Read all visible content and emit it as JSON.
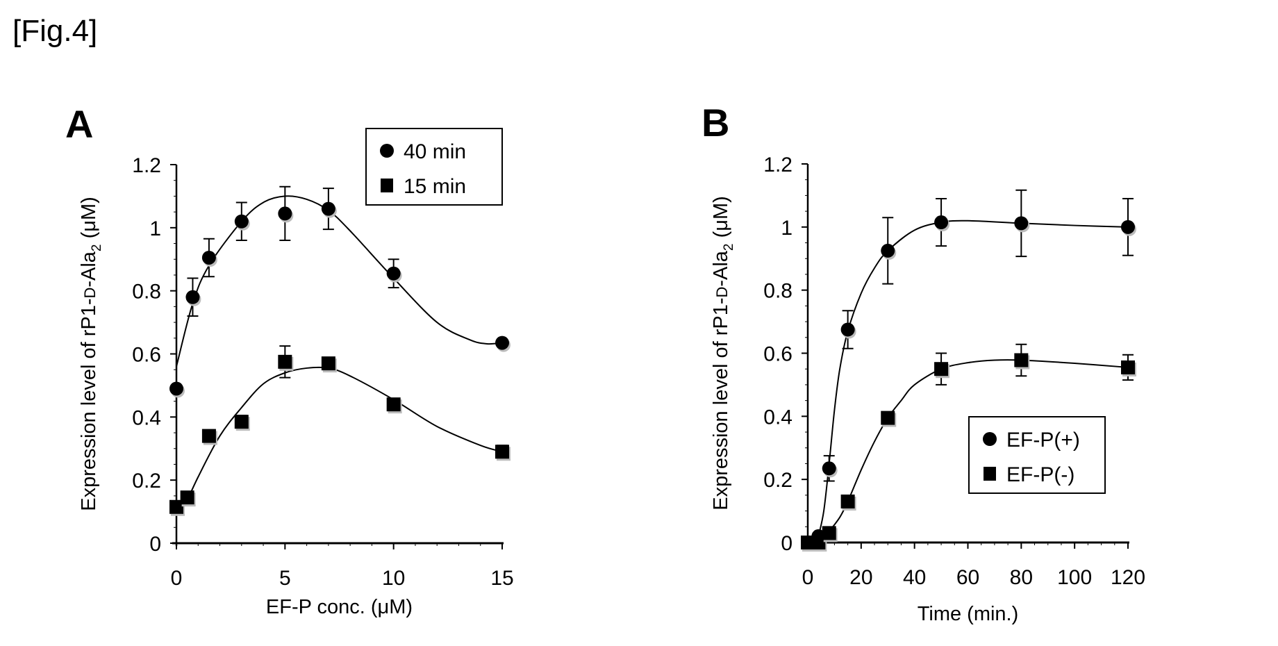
{
  "figure_label": "[Fig.4]",
  "chart_data": [
    {
      "panel": "A",
      "type": "scatter",
      "title": "",
      "xlabel": "EF-P conc. (μM)",
      "ylabel": "Expression level of rP1-D-Ala2 (μM)",
      "ylabel_parts": {
        "main": "Expression level of rP1-",
        "smallcaps": "D",
        "mid": "-Ala",
        "sub": "2",
        "end": " (μM)"
      },
      "xlim": [
        0,
        15
      ],
      "ylim": [
        0,
        1.2
      ],
      "xticks": [
        0,
        5,
        10,
        15
      ],
      "xtick_labels": [
        "0",
        "5",
        "10",
        "15"
      ],
      "yticks": [
        0,
        0.2,
        0.4,
        0.6,
        0.8,
        1.0,
        1.2
      ],
      "ytick_labels": [
        "0",
        "0.2",
        "0.4",
        "0.6",
        "0.8",
        "1",
        "1.2"
      ],
      "grid": false,
      "legend": {
        "placement": "top-right",
        "entries": [
          "40 min",
          "15 min"
        ]
      },
      "series": [
        {
          "name": "40 min",
          "marker": "circle",
          "x": [
            0,
            0.75,
            1.5,
            3,
            5,
            7,
            10,
            15
          ],
          "y": [
            0.49,
            0.78,
            0.905,
            1.02,
            1.045,
            1.06,
            0.855,
            0.635
          ],
          "err": [
            0.0,
            0.06,
            0.06,
            0.06,
            0.085,
            0.065,
            0.045,
            0.0
          ],
          "fit": [
            [
              0,
              0.56
            ],
            [
              0.75,
              0.76
            ],
            [
              1.5,
              0.88
            ],
            [
              3,
              1.02
            ],
            [
              4,
              1.08
            ],
            [
              5,
              1.1
            ],
            [
              6,
              1.09
            ],
            [
              7,
              1.055
            ],
            [
              8,
              0.99
            ],
            [
              10,
              0.84
            ],
            [
              12,
              0.7
            ],
            [
              13.5,
              0.645
            ],
            [
              14.3,
              0.632
            ],
            [
              15,
              0.635
            ]
          ]
        },
        {
          "name": "15 min",
          "marker": "square",
          "x": [
            0,
            0.5,
            1.5,
            3,
            5,
            7,
            10,
            15
          ],
          "y": [
            0.115,
            0.145,
            0.34,
            0.385,
            0.575,
            0.57,
            0.44,
            0.29
          ],
          "err": [
            0.0,
            0.0,
            0.0,
            0.02,
            0.05,
            0.015,
            0.015,
            0.02
          ],
          "fit": [
            [
              0.4,
              0.12
            ],
            [
              1,
              0.21
            ],
            [
              2,
              0.34
            ],
            [
              3,
              0.43
            ],
            [
              4,
              0.505
            ],
            [
              5,
              0.54
            ],
            [
              6,
              0.555
            ],
            [
              7,
              0.555
            ],
            [
              8,
              0.53
            ],
            [
              10,
              0.455
            ],
            [
              12,
              0.37
            ],
            [
              14,
              0.31
            ],
            [
              15,
              0.29
            ]
          ]
        }
      ]
    },
    {
      "panel": "B",
      "type": "scatter",
      "title": "",
      "xlabel": "Time (min.)",
      "ylabel": "Expression level of rP1-D-Ala2 (μM)",
      "ylabel_parts": {
        "main": "Expression level of rP1-",
        "smallcaps": "D",
        "mid": "-Ala",
        "sub": "2",
        "end": " (μM)"
      },
      "xlim": [
        0,
        120
      ],
      "ylim": [
        0,
        1.2
      ],
      "xticks": [
        0,
        20,
        40,
        60,
        80,
        100,
        120
      ],
      "xtick_labels": [
        "0",
        "20",
        "40",
        "60",
        "80",
        "100",
        "120"
      ],
      "yticks": [
        0,
        0.2,
        0.4,
        0.6,
        0.8,
        1.0,
        1.2
      ],
      "ytick_labels": [
        "0",
        "0.2",
        "0.4",
        "0.6",
        "0.8",
        "1",
        "1.2"
      ],
      "grid": false,
      "legend": {
        "placement": "bottom-right",
        "entries": [
          "EF-P(+)",
          "EF-P(-)"
        ]
      },
      "series": [
        {
          "name": "EF-P(+)",
          "marker": "circle",
          "x": [
            0,
            4,
            8,
            15,
            30,
            50,
            80,
            120
          ],
          "y": [
            0.0,
            0.02,
            0.235,
            0.675,
            0.925,
            1.015,
            1.012,
            1.0
          ],
          "err": [
            0.0,
            0.0,
            0.04,
            0.06,
            0.105,
            0.075,
            0.105,
            0.09
          ],
          "fit": [
            [
              4,
              0.02
            ],
            [
              6,
              0.1
            ],
            [
              8,
              0.25
            ],
            [
              10,
              0.42
            ],
            [
              12,
              0.55
            ],
            [
              15,
              0.67
            ],
            [
              20,
              0.79
            ],
            [
              25,
              0.87
            ],
            [
              30,
              0.925
            ],
            [
              40,
              0.99
            ],
            [
              50,
              1.015
            ],
            [
              60,
              1.02
            ],
            [
              80,
              1.012
            ],
            [
              100,
              1.005
            ],
            [
              120,
              1.0
            ]
          ]
        },
        {
          "name": "EF-P(-)",
          "marker": "square",
          "x": [
            0,
            4,
            8,
            15,
            30,
            50,
            80,
            120
          ],
          "y": [
            0.0,
            0.0,
            0.03,
            0.13,
            0.395,
            0.55,
            0.578,
            0.555
          ],
          "err": [
            0.0,
            0.0,
            0.0,
            0.0,
            0.0,
            0.05,
            0.05,
            0.04
          ],
          "fit": [
            [
              8,
              0.035
            ],
            [
              12,
              0.08
            ],
            [
              15,
              0.13
            ],
            [
              20,
              0.23
            ],
            [
              25,
              0.32
            ],
            [
              30,
              0.395
            ],
            [
              35,
              0.45
            ],
            [
              40,
              0.5
            ],
            [
              50,
              0.55
            ],
            [
              60,
              0.57
            ],
            [
              70,
              0.578
            ],
            [
              80,
              0.578
            ],
            [
              100,
              0.568
            ],
            [
              120,
              0.555
            ]
          ]
        }
      ]
    }
  ]
}
